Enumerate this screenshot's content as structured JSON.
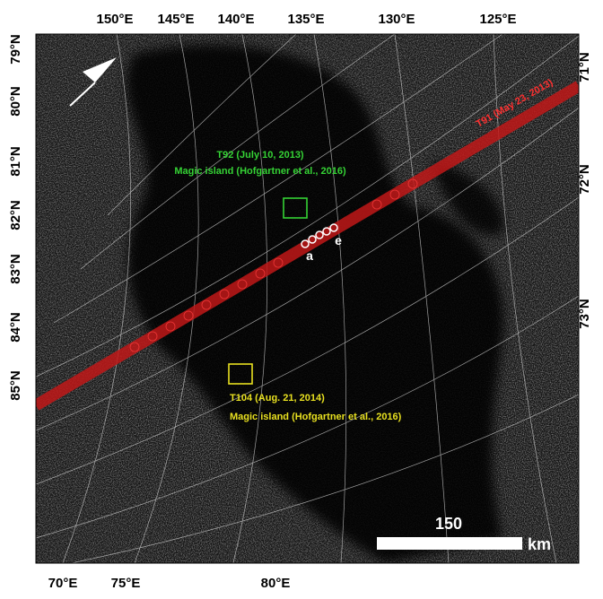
{
  "top_labels": [
    "150°E",
    "145°E",
    "140°E",
    "135°E",
    "130°E",
    "125°E"
  ],
  "left_labels": [
    "79°N",
    "80°N",
    "81°N",
    "82°N",
    "83°N",
    "84°N",
    "85°N"
  ],
  "right_labels": [
    "71°N",
    "72°N",
    "73°N"
  ],
  "bottom_labels": [
    "70°E",
    "75°E",
    "80°E"
  ],
  "annotations": {
    "t92": {
      "title": "T92 (July 10, 2013)",
      "note": "Magic island (Hofgartner et al., 2016)"
    },
    "t104": {
      "title": "T104 (Aug. 21, 2014)",
      "note": "Magic island (Hofgartner et al., 2016)"
    },
    "track": "T91 (May 23, 2013)",
    "point_a": "a",
    "point_e": "e"
  },
  "scale_bar": {
    "length": "150",
    "unit": "km"
  }
}
